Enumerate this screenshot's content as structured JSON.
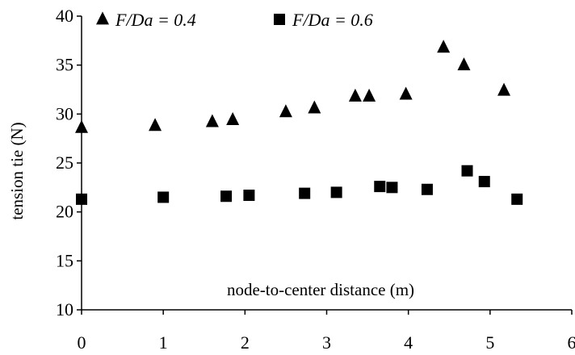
{
  "chart_data": {
    "type": "scatter",
    "title": "",
    "xlabel": "node-to-center distance (m)",
    "ylabel": "tension tie (N)",
    "xlim": [
      0,
      6
    ],
    "ylim": [
      10,
      40
    ],
    "xticks": [
      "0",
      "1",
      "2",
      "3",
      "4",
      "5",
      "6"
    ],
    "yticks": [
      "10",
      "15",
      "20",
      "25",
      "30",
      "35",
      "40"
    ],
    "grid": false,
    "legend_position": "top-left",
    "series": [
      {
        "name": "F/Da = 0.4",
        "marker": "triangle",
        "color": "#000000",
        "points": [
          {
            "x": 0.0,
            "y": 28.6
          },
          {
            "x": 0.9,
            "y": 28.8
          },
          {
            "x": 1.6,
            "y": 29.2
          },
          {
            "x": 1.85,
            "y": 29.4
          },
          {
            "x": 2.5,
            "y": 30.2
          },
          {
            "x": 2.85,
            "y": 30.6
          },
          {
            "x": 3.35,
            "y": 31.8
          },
          {
            "x": 3.52,
            "y": 31.8
          },
          {
            "x": 3.97,
            "y": 32.0
          },
          {
            "x": 4.43,
            "y": 36.8
          },
          {
            "x": 4.68,
            "y": 35.0
          },
          {
            "x": 5.17,
            "y": 32.4
          }
        ]
      },
      {
        "name": "F/Da = 0.6",
        "marker": "square",
        "color": "#000000",
        "points": [
          {
            "x": 0.0,
            "y": 21.3
          },
          {
            "x": 1.0,
            "y": 21.5
          },
          {
            "x": 1.77,
            "y": 21.6
          },
          {
            "x": 2.05,
            "y": 21.7
          },
          {
            "x": 2.73,
            "y": 21.9
          },
          {
            "x": 3.12,
            "y": 22.0
          },
          {
            "x": 3.65,
            "y": 22.6
          },
          {
            "x": 3.8,
            "y": 22.5
          },
          {
            "x": 4.23,
            "y": 22.3
          },
          {
            "x": 4.72,
            "y": 24.2
          },
          {
            "x": 4.93,
            "y": 23.1
          },
          {
            "x": 5.33,
            "y": 21.3
          }
        ]
      }
    ]
  }
}
